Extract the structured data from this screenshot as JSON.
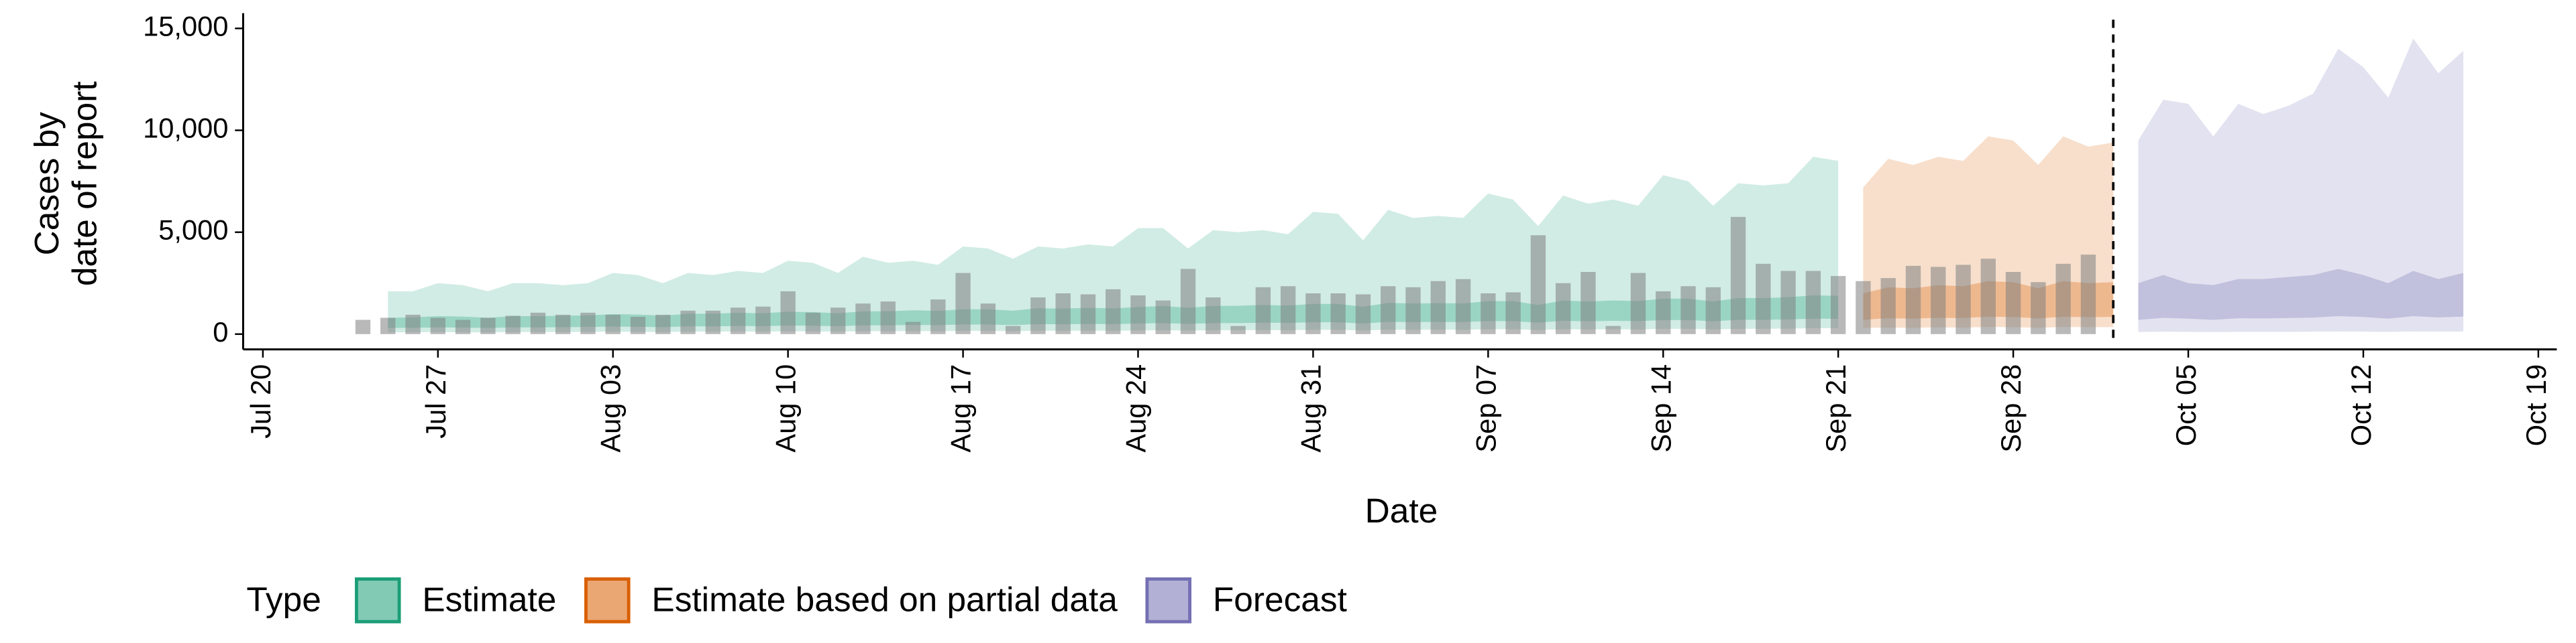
{
  "chart_data": {
    "type": "combo",
    "xlabel": "Date",
    "ylabel": [
      "Cases by",
      "date of report"
    ],
    "legend_title": "Type",
    "xlim": [
      "Jul 19",
      "Oct 20"
    ],
    "xticks": [
      "Jul 20",
      "Jul 27",
      "Aug 03",
      "Aug 10",
      "Aug 17",
      "Aug 24",
      "Aug 31",
      "Sep 07",
      "Sep 14",
      "Sep 21",
      "Sep 28",
      "Oct 05",
      "Oct 12",
      "Oct 19"
    ],
    "ylim": [
      -750,
      15750
    ],
    "yticks": [
      0,
      {
        "value": 5000,
        "label": "5,000"
      },
      {
        "value": 10000,
        "label": "10,000"
      },
      {
        "value": 15000,
        "label": "15,000"
      }
    ],
    "vline": "Oct 2",
    "bars": {
      "color": "#808080",
      "x": [
        "Jul 24",
        "Jul 25",
        "Jul 26",
        "Jul 27",
        "Jul 28",
        "Jul 29",
        "Jul 30",
        "Jul 31",
        "Aug 1",
        "Aug 2",
        "Aug 3",
        "Aug 4",
        "Aug 5",
        "Aug 6",
        "Aug 7",
        "Aug 8",
        "Aug 9",
        "Aug 10",
        "Aug 11",
        "Aug 12",
        "Aug 13",
        "Aug 14",
        "Aug 15",
        "Aug 16",
        "Aug 17",
        "Aug 18",
        "Aug 19",
        "Aug 20",
        "Aug 21",
        "Aug 22",
        "Aug 23",
        "Aug 24",
        "Aug 25",
        "Aug 26",
        "Aug 27",
        "Aug 28",
        "Aug 29",
        "Aug 30",
        "Aug 31",
        "Sep 1",
        "Sep 2",
        "Sep 3",
        "Sep 4",
        "Sep 5",
        "Sep 6",
        "Sep 7",
        "Sep 8",
        "Sep 9",
        "Sep 10",
        "Sep 11",
        "Sep 12",
        "Sep 13",
        "Sep 14",
        "Sep 15",
        "Sep 16",
        "Sep 17",
        "Sep 18",
        "Sep 19",
        "Sep 20",
        "Sep 21",
        "Sep 22",
        "Sep 23",
        "Sep 24",
        "Sep 25",
        "Sep 26",
        "Sep 27",
        "Sep 28",
        "Sep 29",
        "Sep 30",
        "Oct 1"
      ],
      "values": [
        700,
        800,
        950,
        800,
        700,
        800,
        900,
        1050,
        950,
        1050,
        950,
        850,
        950,
        1150,
        1150,
        1300,
        1350,
        2100,
        1050,
        1300,
        1500,
        1600,
        600,
        1700,
        3000,
        1500,
        400,
        1800,
        2000,
        1950,
        2200,
        1900,
        1650,
        3200,
        1800,
        400,
        2300,
        2350,
        2000,
        2000,
        1950,
        2350,
        2300,
        2600,
        2700,
        2000,
        2050,
        4850,
        2500,
        3050,
        400,
        3000,
        2100,
        2350,
        2300,
        5750,
        3450,
        3100,
        3100,
        2850,
        2600,
        2750,
        3350,
        3300,
        3400,
        3700,
        3050,
        2550,
        3450,
        3900
      ]
    },
    "series": [
      {
        "name": "Estimate",
        "color": "#1b9e77",
        "x": [
          "Jul 25",
          "Jul 26",
          "Jul 27",
          "Jul 28",
          "Jul 29",
          "Jul 30",
          "Jul 31",
          "Aug 1",
          "Aug 2",
          "Aug 3",
          "Aug 4",
          "Aug 5",
          "Aug 6",
          "Aug 7",
          "Aug 8",
          "Aug 9",
          "Aug 10",
          "Aug 11",
          "Aug 12",
          "Aug 13",
          "Aug 14",
          "Aug 15",
          "Aug 16",
          "Aug 17",
          "Aug 18",
          "Aug 19",
          "Aug 20",
          "Aug 21",
          "Aug 22",
          "Aug 23",
          "Aug 24",
          "Aug 25",
          "Aug 26",
          "Aug 27",
          "Aug 28",
          "Aug 29",
          "Aug 30",
          "Aug 31",
          "Sep 1",
          "Sep 2",
          "Sep 3",
          "Sep 4",
          "Sep 5",
          "Sep 6",
          "Sep 7",
          "Sep 8",
          "Sep 9",
          "Sep 10",
          "Sep 11",
          "Sep 12",
          "Sep 13",
          "Sep 14",
          "Sep 15",
          "Sep 16",
          "Sep 17",
          "Sep 18",
          "Sep 19",
          "Sep 20",
          "Sep 21"
        ],
        "lower_90": [
          80,
          90,
          100,
          90,
          80,
          100,
          100,
          100,
          110,
          120,
          110,
          100,
          120,
          120,
          130,
          120,
          140,
          130,
          120,
          140,
          140,
          150,
          140,
          160,
          160,
          140,
          170,
          160,
          170,
          160,
          180,
          190,
          170,
          190,
          190,
          200,
          190,
          210,
          210,
          180,
          220,
          210,
          220,
          210,
          240,
          240,
          200,
          240,
          230,
          240,
          230,
          260,
          260,
          230,
          260,
          260,
          270,
          290,
          290
        ],
        "upper_90": [
          2100,
          2100,
          2500,
          2400,
          2100,
          2500,
          2500,
          2400,
          2500,
          3000,
          2900,
          2500,
          3000,
          2900,
          3100,
          3000,
          3600,
          3500,
          3000,
          3800,
          3500,
          3600,
          3400,
          4300,
          4200,
          3700,
          4300,
          4200,
          4400,
          4300,
          5200,
          5200,
          4200,
          5100,
          5000,
          5100,
          4900,
          6000,
          5900,
          4600,
          6100,
          5700,
          5800,
          5700,
          6900,
          6600,
          5300,
          6800,
          6400,
          6600,
          6300,
          7800,
          7500,
          6300,
          7400,
          7300,
          7400,
          8700,
          8500
        ],
        "lower_50": [
          300,
          310,
          330,
          320,
          300,
          330,
          330,
          340,
          350,
          370,
          360,
          340,
          380,
          380,
          400,
          390,
          420,
          410,
          390,
          430,
          430,
          450,
          440,
          470,
          470,
          440,
          490,
          480,
          500,
          490,
          520,
          540,
          500,
          540,
          540,
          560,
          550,
          580,
          580,
          520,
          600,
          590,
          600,
          590,
          640,
          640,
          560,
          650,
          630,
          650,
          640,
          690,
          690,
          630,
          700,
          700,
          720,
          760,
          750
        ],
        "upper_50": [
          800,
          820,
          880,
          860,
          800,
          880,
          880,
          900,
          920,
          980,
          960,
          900,
          1000,
          1000,
          1050,
          1020,
          1100,
          1080,
          1020,
          1120,
          1120,
          1170,
          1140,
          1220,
          1220,
          1150,
          1270,
          1250,
          1290,
          1260,
          1330,
          1380,
          1290,
          1380,
          1390,
          1430,
          1400,
          1480,
          1480,
          1340,
          1530,
          1500,
          1520,
          1500,
          1620,
          1620,
          1430,
          1650,
          1600,
          1650,
          1620,
          1740,
          1740,
          1600,
          1770,
          1770,
          1810,
          1900,
          1880
        ]
      },
      {
        "name": "Estimate based on partial data",
        "color": "#d95f02",
        "x": [
          "Sep 22",
          "Sep 23",
          "Sep 24",
          "Sep 25",
          "Sep 26",
          "Sep 27",
          "Sep 28",
          "Sep 29",
          "Sep 30",
          "Oct 1",
          "Oct 2"
        ],
        "lower_90": [
          300,
          320,
          310,
          330,
          320,
          350,
          340,
          310,
          350,
          340,
          345
        ],
        "upper_90": [
          7200,
          8600,
          8300,
          8700,
          8500,
          9700,
          9500,
          8300,
          9700,
          9200,
          9400
        ],
        "lower_50": [
          700,
          780,
          760,
          800,
          790,
          850,
          840,
          770,
          850,
          830,
          840
        ],
        "upper_50": [
          2000,
          2300,
          2250,
          2400,
          2350,
          2600,
          2550,
          2250,
          2600,
          2500,
          2550
        ]
      },
      {
        "name": "Forecast",
        "color": "#7570b3",
        "x": [
          "Oct 3",
          "Oct 4",
          "Oct 5",
          "Oct 6",
          "Oct 7",
          "Oct 8",
          "Oct 9",
          "Oct 10",
          "Oct 11",
          "Oct 12",
          "Oct 13",
          "Oct 14",
          "Oct 15",
          "Oct 16"
        ],
        "lower_90": [
          100,
          120,
          110,
          100,
          110,
          110,
          110,
          120,
          130,
          120,
          110,
          130,
          120,
          130
        ],
        "upper_90": [
          9500,
          11500,
          11300,
          9700,
          11300,
          10800,
          11200,
          11800,
          14000,
          13100,
          11600,
          14500,
          12800,
          13900
        ],
        "lower_50": [
          700,
          800,
          760,
          700,
          780,
          770,
          790,
          810,
          880,
          840,
          760,
          880,
          820,
          860
        ],
        "upper_50": [
          2500,
          2900,
          2500,
          2400,
          2700,
          2700,
          2800,
          2900,
          3200,
          2900,
          2500,
          3100,
          2700,
          3000
        ]
      }
    ]
  }
}
